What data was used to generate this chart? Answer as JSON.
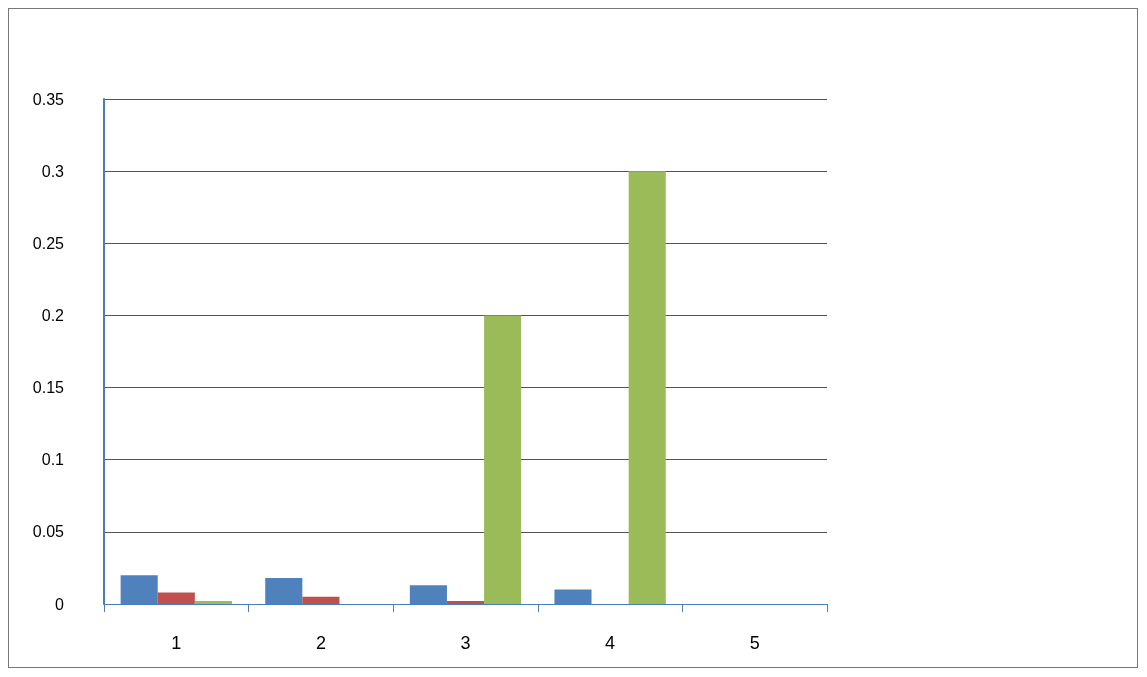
{
  "chart_data": {
    "type": "bar",
    "categories": [
      "1",
      "2",
      "3",
      "4",
      "5"
    ],
    "series": [
      {
        "color": "#4f81bd",
        "values": [
          0.02,
          0.018,
          0.013,
          0.01,
          0
        ]
      },
      {
        "color": "#c0504d",
        "values": [
          0.008,
          0.005,
          0.002,
          0,
          0
        ]
      },
      {
        "color": "#9bbb59",
        "values": [
          0.002,
          0,
          0.2,
          0.3,
          0
        ]
      }
    ],
    "ylim": [
      0,
      0.35
    ],
    "yticks": [
      0,
      0.05,
      0.1,
      0.15,
      0.2,
      0.25,
      0.3,
      0.35
    ],
    "grid": "y"
  }
}
